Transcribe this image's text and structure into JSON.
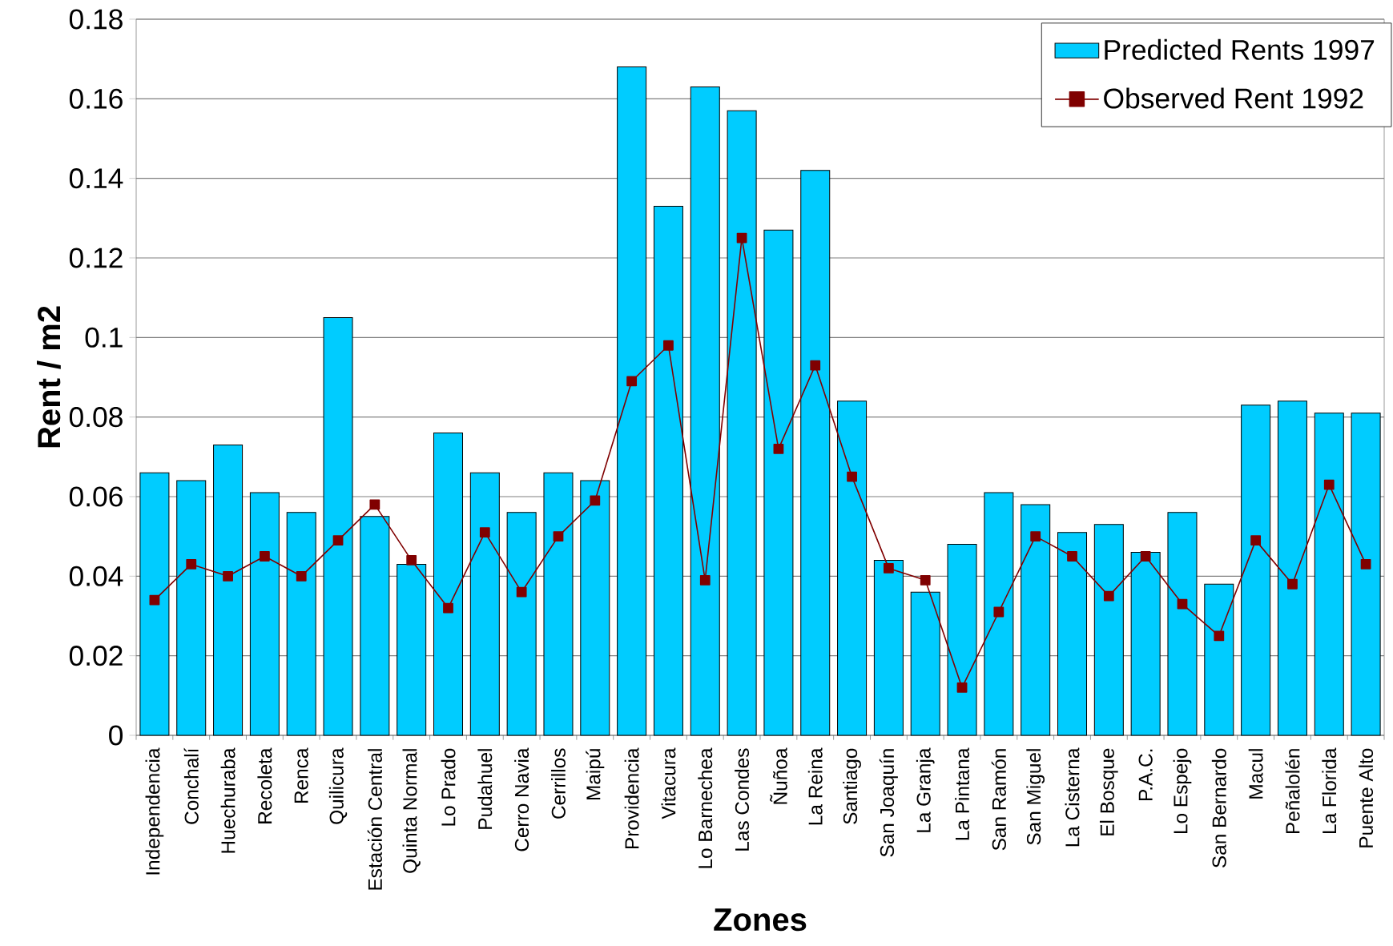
{
  "chart_data": {
    "type": "bar",
    "xlabel": "Zones",
    "ylabel": "Rent / m2",
    "categories": [
      "Independencia",
      "Conchalí",
      "Huechuraba",
      "Recoleta",
      "Renca",
      "Quilicura",
      "Estación Central",
      "Quinta Normal",
      "Lo Prado",
      "Pudahuel",
      "Cerro Navia",
      "Cerrillos",
      "Maipú",
      "Providencia",
      "Vitacura",
      "Lo Barnechea",
      "Las Condes",
      "Ñuñoa",
      "La Reina",
      "Santiago",
      "San Joaquín",
      "La Granja",
      "La Pintana",
      "San Ramón",
      "San Miguel",
      "La Cisterna",
      "El Bosque",
      "P.A.C.",
      "Lo Espejo",
      "San Bernardo",
      "Macul",
      "Peñalolén",
      "La Florida",
      "Puente Alto"
    ],
    "series": [
      {
        "name": "Predicted Rents 1997",
        "color": "#00ccff",
        "values": [
          0.066,
          0.064,
          0.073,
          0.061,
          0.056,
          0.105,
          0.055,
          0.043,
          0.076,
          0.066,
          0.056,
          0.066,
          0.064,
          0.168,
          0.133,
          0.163,
          0.157,
          0.127,
          0.142,
          0.084,
          0.044,
          0.036,
          0.048,
          0.061,
          0.058,
          0.051,
          0.053,
          0.046,
          0.056,
          0.038,
          0.083,
          0.084,
          0.081,
          0.081
        ]
      },
      {
        "name": "Observed Rent 1992",
        "type": "line",
        "color": "#800000",
        "marker": "square",
        "values": [
          0.034,
          0.043,
          0.04,
          0.045,
          0.04,
          0.049,
          0.058,
          0.044,
          0.032,
          0.051,
          0.036,
          0.05,
          0.059,
          0.089,
          0.098,
          0.039,
          0.125,
          0.072,
          0.093,
          0.065,
          0.042,
          0.039,
          0.012,
          0.031,
          0.05,
          0.045,
          0.035,
          0.045,
          0.033,
          0.025,
          0.049,
          0.038,
          0.063,
          0.043
        ]
      }
    ],
    "ylim": [
      0,
      0.18
    ],
    "yticks": [
      0,
      0.02,
      0.04,
      0.06,
      0.08,
      0.1,
      0.12,
      0.14,
      0.16,
      0.18
    ],
    "grid": "y",
    "legend": "top right"
  }
}
